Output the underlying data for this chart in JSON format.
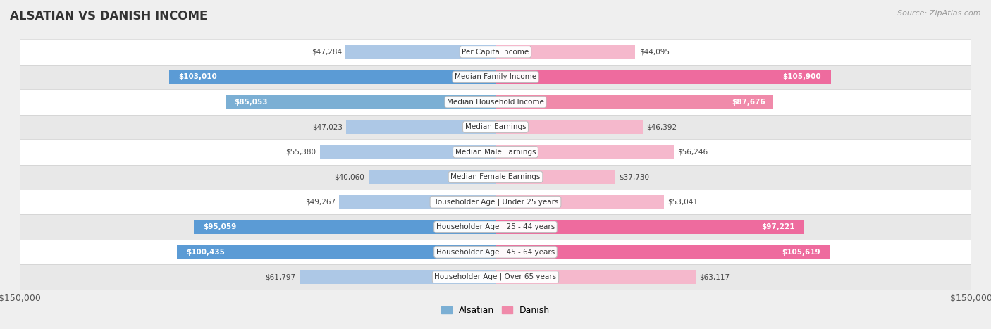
{
  "title": "ALSATIAN VS DANISH INCOME",
  "source": "Source: ZipAtlas.com",
  "categories": [
    "Per Capita Income",
    "Median Family Income",
    "Median Household Income",
    "Median Earnings",
    "Median Male Earnings",
    "Median Female Earnings",
    "Householder Age | Under 25 years",
    "Householder Age | 25 - 44 years",
    "Householder Age | 45 - 64 years",
    "Householder Age | Over 65 years"
  ],
  "alsatian_values": [
    47284,
    103010,
    85053,
    47023,
    55380,
    40060,
    49267,
    95059,
    100435,
    61797
  ],
  "danish_values": [
    44095,
    105900,
    87676,
    46392,
    56246,
    37730,
    53041,
    97221,
    105619,
    63117
  ],
  "alsatian_labels": [
    "$47,284",
    "$103,010",
    "$85,053",
    "$47,023",
    "$55,380",
    "$40,060",
    "$49,267",
    "$95,059",
    "$100,435",
    "$61,797"
  ],
  "danish_labels": [
    "$44,095",
    "$105,900",
    "$87,676",
    "$46,392",
    "$56,246",
    "$37,730",
    "$53,041",
    "$97,221",
    "$105,619",
    "$63,117"
  ],
  "alsatian_color_light": "#adc8e6",
  "alsatian_color_mid": "#7bafd4",
  "alsatian_color_dark": "#5b9bd5",
  "danish_color_light": "#f5b8cc",
  "danish_color_mid": "#f08aaa",
  "danish_color_dark": "#ee6b9e",
  "max_value": 150000,
  "background_color": "#efefef",
  "row_colors": [
    "#ffffff",
    "#e8e8e8"
  ],
  "row_border_color": "#cccccc",
  "legend_alsatian_color": "#7bafd4",
  "legend_danish_color": "#f08aaa",
  "dark_rows": [
    1,
    7,
    8
  ],
  "mid_rows": [
    2
  ]
}
